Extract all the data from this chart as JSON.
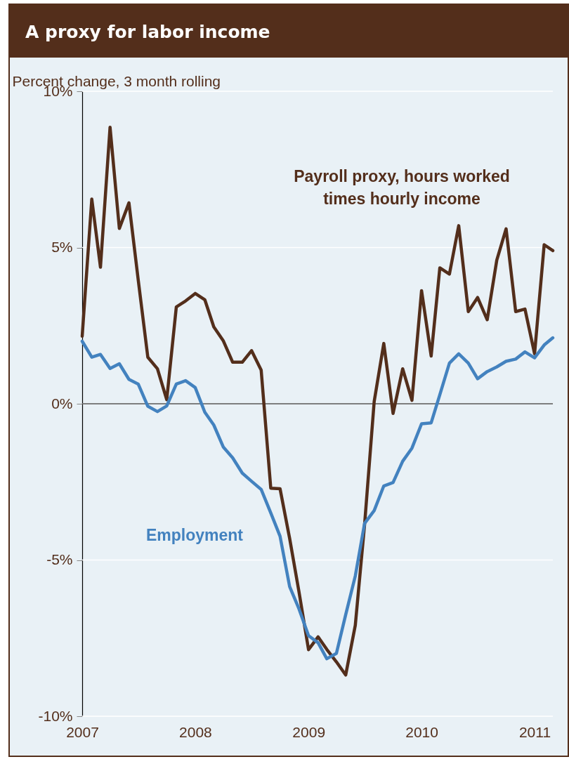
{
  "chart_data": {
    "type": "line",
    "title": "A proxy for labor income",
    "ylabel": "Percent change, 3 month rolling",
    "x": [
      "2007-01",
      "2007-02",
      "2007-03",
      "2007-04",
      "2007-05",
      "2007-06",
      "2007-07",
      "2007-08",
      "2007-09",
      "2007-10",
      "2007-11",
      "2007-12",
      "2008-01",
      "2008-02",
      "2008-03",
      "2008-04",
      "2008-05",
      "2008-06",
      "2008-07",
      "2008-08",
      "2008-09",
      "2008-10",
      "2008-11",
      "2008-12",
      "2009-01",
      "2009-02",
      "2009-03",
      "2009-04",
      "2009-05",
      "2009-06",
      "2009-07",
      "2009-08",
      "2009-09",
      "2009-10",
      "2009-11",
      "2009-12",
      "2010-01",
      "2010-02",
      "2010-03",
      "2010-04",
      "2010-05",
      "2010-06",
      "2010-07",
      "2010-08",
      "2010-09",
      "2010-10",
      "2010-11",
      "2010-12",
      "2011-01",
      "2011-02",
      "2011-03"
    ],
    "series": [
      {
        "name": "Payroll proxy, hours worked\ntimes hourly income",
        "color": "#532e1b",
        "values": [
          2.16,
          6.55,
          4.37,
          8.85,
          5.61,
          6.43,
          3.96,
          1.49,
          1.12,
          0.13,
          3.1,
          3.29,
          3.53,
          3.33,
          2.46,
          2.01,
          1.33,
          1.33,
          1.7,
          1.08,
          -2.7,
          -2.72,
          -4.31,
          -6.01,
          -7.87,
          -7.46,
          -7.86,
          -8.26,
          -8.68,
          -7.09,
          -3.87,
          0.07,
          1.93,
          -0.31,
          1.12,
          0.11,
          3.62,
          1.53,
          4.35,
          4.15,
          5.7,
          2.95,
          3.4,
          2.69,
          4.6,
          5.6,
          2.95,
          3.03,
          1.6,
          5.09,
          4.9
        ]
      },
      {
        "name": "Employment",
        "color": "#4382bf",
        "values": [
          2.0,
          1.49,
          1.58,
          1.13,
          1.28,
          0.78,
          0.63,
          -0.08,
          -0.25,
          -0.07,
          0.63,
          0.74,
          0.52,
          -0.27,
          -0.68,
          -1.39,
          -1.73,
          -2.22,
          -2.48,
          -2.74,
          -3.49,
          -4.24,
          -5.85,
          -6.56,
          -7.42,
          -7.65,
          -8.16,
          -7.99,
          -6.75,
          -5.51,
          -3.83,
          -3.42,
          -2.63,
          -2.52,
          -1.84,
          -1.42,
          -0.64,
          -0.61,
          0.29,
          1.3,
          1.6,
          1.3,
          0.8,
          1.03,
          1.18,
          1.36,
          1.43,
          1.66,
          1.47,
          1.88,
          2.11
        ]
      }
    ],
    "xlim": [
      "2007-01",
      "2011-03"
    ],
    "xticks": [
      {
        "value": "2007-01",
        "label": "2007"
      },
      {
        "value": "2008-01",
        "label": "2008"
      },
      {
        "value": "2009-01",
        "label": "2009"
      },
      {
        "value": "2010-01",
        "label": "2010"
      },
      {
        "value": "2011-01",
        "label": "2011"
      }
    ],
    "ylim": [
      -10,
      10
    ],
    "yticks": [
      {
        "value": -10,
        "label": "-10%"
      },
      {
        "value": -5,
        "label": "-5%"
      },
      {
        "value": 0,
        "label": "0%"
      },
      {
        "value": 5,
        "label": "5%"
      },
      {
        "value": 10,
        "label": "10%"
      }
    ],
    "ref_lines": [
      {
        "axis": "y",
        "value": 0,
        "color": "#000000"
      }
    ],
    "grid": "y",
    "legend": false,
    "marker": "none",
    "line_style": "solid"
  }
}
